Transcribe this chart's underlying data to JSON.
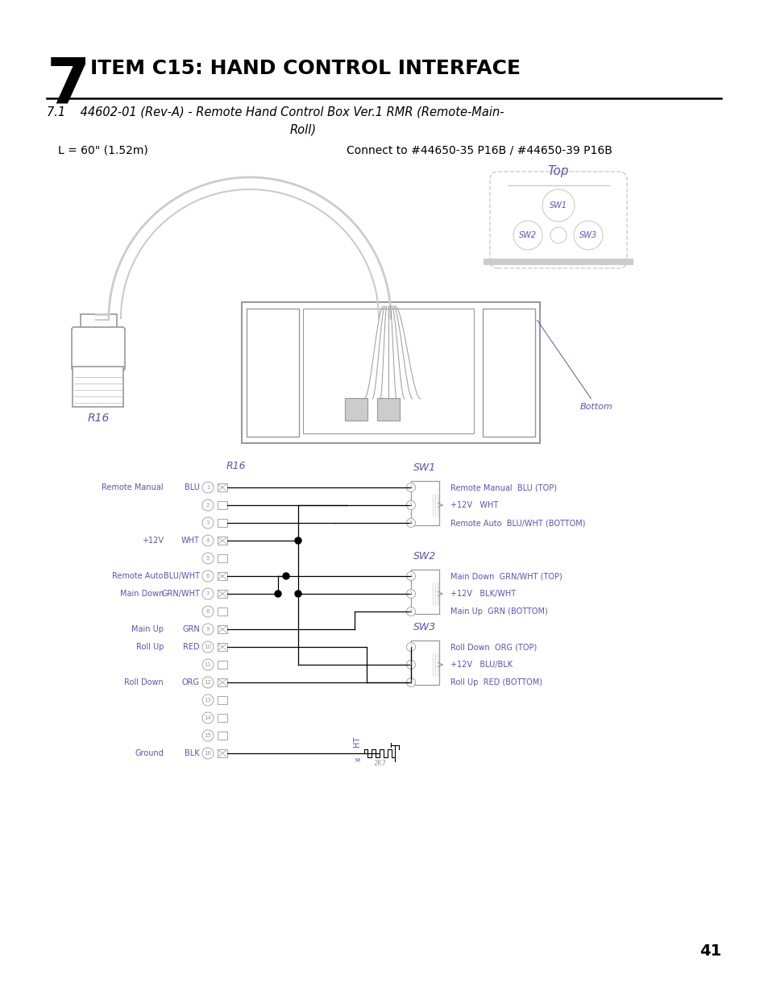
{
  "title_number": "7",
  "title_text": "ITEM C15: HAND CONTROL INTERFACE",
  "subtitle_71": "7.1    44602-01 (Rev-A) - Remote Hand Control Box Ver.1 RMR (Remote-Main-",
  "subtitle_roll": "Roll)",
  "length_label": "L = 60\" (1.52m)",
  "connect_label": "Connect to #44650-35 P16B / #44650-39 P16B",
  "top_label": "Top",
  "bottom_label": "Bottom",
  "r16_label": "R16",
  "page_number": "41",
  "blue_color": "#5555BB",
  "black": "#000000",
  "gray": "#999999",
  "lgray": "#CCCCCC",
  "bg_color": "#FFFFFF",
  "sw_labels": [
    "SW1",
    "SW2",
    "SW3"
  ],
  "pin_rows": [
    {
      "num": 1,
      "label": "Remote Manual",
      "color": "BLU",
      "active": true
    },
    {
      "num": 2,
      "label": "",
      "color": "",
      "active": false
    },
    {
      "num": 3,
      "label": "",
      "color": "",
      "active": false
    },
    {
      "num": 4,
      "label": "+12V",
      "color": "WHT",
      "active": true
    },
    {
      "num": 5,
      "label": "",
      "color": "",
      "active": false
    },
    {
      "num": 6,
      "label": "Remote Auto",
      "color": "BLU/WHT",
      "active": true
    },
    {
      "num": 7,
      "label": "Main Down",
      "color": "GRN/WHT",
      "active": true
    },
    {
      "num": 8,
      "label": "",
      "color": "",
      "active": false
    },
    {
      "num": 9,
      "label": "Main Up",
      "color": "GRN",
      "active": true
    },
    {
      "num": 10,
      "label": "Roll Up",
      "color": "RED",
      "active": true
    },
    {
      "num": 11,
      "label": "",
      "color": "",
      "active": false
    },
    {
      "num": 12,
      "label": "Roll Down",
      "color": "ORG",
      "active": true
    },
    {
      "num": 13,
      "label": "",
      "color": "",
      "active": false
    },
    {
      "num": 14,
      "label": "",
      "color": "",
      "active": false
    },
    {
      "num": 15,
      "label": "",
      "color": "",
      "active": false
    },
    {
      "num": 16,
      "label": "Ground",
      "color": "BLK",
      "active": true
    }
  ],
  "sw1_right_labels": [
    "Remote Manual  BLU (TOP)",
    "+12V   WHT",
    "Remote Auto  BLU/WHT (BOTTOM)"
  ],
  "sw2_right_labels": [
    "Main Down  GRN/WHT (TOP)",
    "+12V   BLK/WHT",
    "Main Up  GRN (BOTTOM)"
  ],
  "sw3_right_labels": [
    "Roll Down  ORG (TOP)",
    "+12V   BLU/BLK",
    "Roll Up  RED (BOTTOM)"
  ]
}
